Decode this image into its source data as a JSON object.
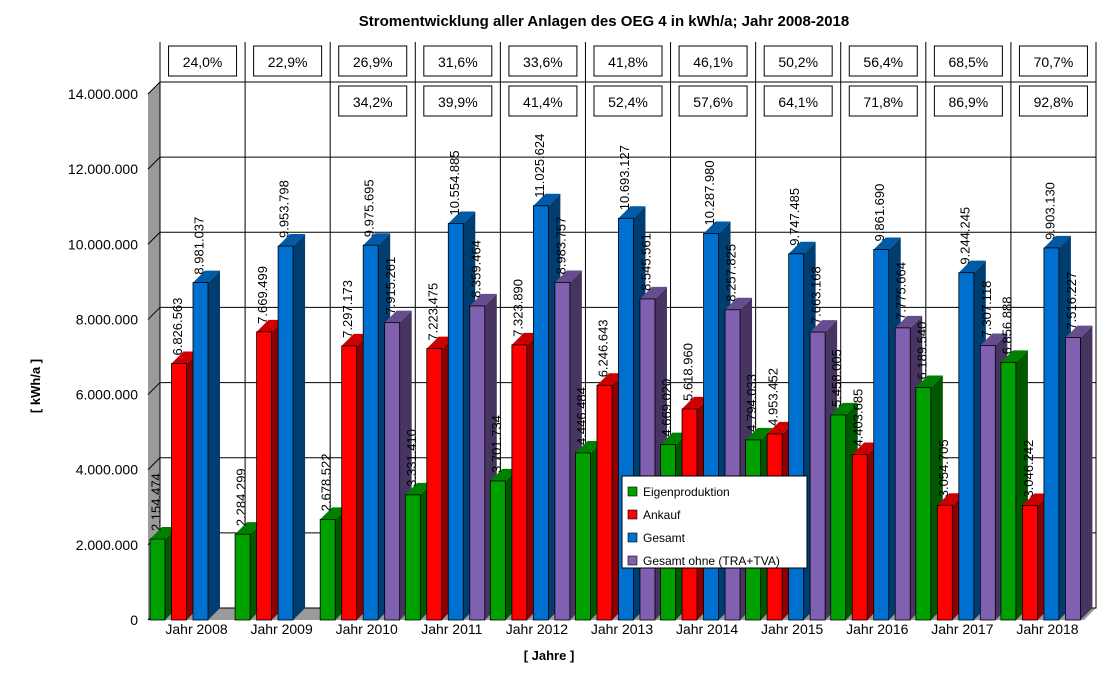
{
  "chart_data": {
    "type": "bar",
    "title": "Stromentwicklung aller Anlagen des OEG 4 in kWh/a; Jahr 2008-2018",
    "xlabel": "[ Jahre ]",
    "ylabel": "[ kWh/a ]",
    "ylim": [
      0,
      14000000
    ],
    "yticks": [
      0,
      2000000,
      4000000,
      6000000,
      8000000,
      10000000,
      12000000,
      14000000
    ],
    "ytick_labels": [
      "0",
      "2.000.000",
      "4.000.000",
      "6.000.000",
      "8.000.000",
      "10.000.000",
      "12.000.000",
      "14.000.000"
    ],
    "grid": true,
    "legend_position": "center-bottom",
    "categories": [
      "Jahr 2008",
      "Jahr 2009",
      "Jahr 2010",
      "Jahr 2011",
      "Jahr 2012",
      "Jahr 2013",
      "Jahr 2014",
      "Jahr 2015",
      "Jahr 2016",
      "Jahr 2017",
      "Jahr 2018"
    ],
    "series": [
      {
        "name": "Eigenproduktion",
        "color": "#00a000",
        "values": [
          2154474,
          2284299,
          2678522,
          3331410,
          3701734,
          4446484,
          4669020,
          4794033,
          5458005,
          6189540,
          6856888
        ],
        "labels": [
          "2.154.474",
          "2.284.299",
          "2.678.522",
          "3.331.410",
          "3.701.734",
          "4.446.484",
          "4.669.020",
          "4.794.033",
          "5.458.005",
          "6.189.540",
          "6.856.888"
        ]
      },
      {
        "name": "Ankauf",
        "color": "#ff0000",
        "values": [
          6826563,
          7669499,
          7297173,
          7223475,
          7323890,
          6246643,
          5618960,
          4953452,
          4403685,
          3054705,
          3046242
        ],
        "labels": [
          "6.826.563",
          "7.669.499",
          "7.297.173",
          "7.223.475",
          "7.323.890",
          "6.246.643",
          "5.618.960",
          "4.953.452",
          "4.403.685",
          "3.054.705",
          "3.046.242"
        ]
      },
      {
        "name": "Gesamt",
        "color": "#0070d0",
        "values": [
          8981037,
          9953798,
          9975695,
          10554885,
          11025624,
          10693127,
          10287980,
          9747485,
          9861690,
          9244245,
          9903130
        ],
        "labels": [
          "8.981.037",
          "9.953.798",
          "9.975.695",
          "10.554.885",
          "11.025.624",
          "10.693.127",
          "10.287.980",
          "9.747.485",
          "9.861.690",
          "9.244.245",
          "9.903.130"
        ]
      },
      {
        "name": "Gesamt ohne (TRA+TVA)",
        "color": "#8060b0",
        "values": [
          null,
          null,
          7915261,
          8359464,
          8983757,
          8545561,
          8257825,
          7663168,
          7775664,
          7307118,
          7516227
        ],
        "labels": [
          null,
          null,
          "7.915.261",
          "8.359.464",
          "8.983.757",
          "8.545.561",
          "8.257.825",
          "7.663.168",
          "7.775.664",
          "7.307.118",
          "7.516.227"
        ]
      }
    ],
    "percent_top": [
      "24,0%",
      "22,9%",
      "26,9%",
      "31,6%",
      "33,6%",
      "41,8%",
      "46,1%",
      "50,2%",
      "56,4%",
      "68,5%",
      "70,7%"
    ],
    "percent_bottom": [
      null,
      null,
      "34,2%",
      "39,9%",
      "41,4%",
      "52,4%",
      "57,6%",
      "64,1%",
      "71,8%",
      "86,9%",
      "92,8%"
    ]
  }
}
